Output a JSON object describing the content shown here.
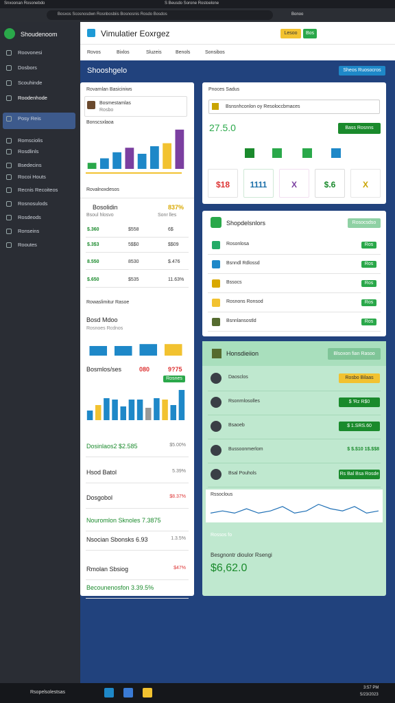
{
  "browser": {
    "tab": "Snxoonan Rosonebdo",
    "window_title": "S Beusdo Sorone Rostoelone",
    "address": "Bosxos Scosnosdwn Rosnbosbiis Bosnosnis Rosdo Bosdos",
    "profile": "Bonoo"
  },
  "sidebar": {
    "brand": "Shoudenoom",
    "items": [
      "Roovonesi",
      "Dosbors",
      "Scouhinde",
      "Roodenhode",
      "Posy Reis",
      "Romsciolis",
      "Rosdlinls",
      "Bsedecins",
      "Rocoi Houts",
      "Recnis Recoiteos",
      "Rosnosulods",
      "Rosdeods",
      "Ronseins",
      "Rooutes"
    ]
  },
  "header": {
    "title": "Vimulatier Eoxrgez",
    "buttons": [
      "Lesoo",
      "Bos"
    ],
    "tabs": [
      "Rovos",
      "Bixlos",
      "Sluzeis",
      "Benols",
      "Sonsibos"
    ]
  },
  "dashboard": {
    "title": "Shooshgelo",
    "action": "Sheos Ruosocros"
  },
  "left_panel": {
    "heading": "Rovarnlan Basiciniws",
    "profile_name": "Bosmestamlas",
    "profile_sub": "Rosbo",
    "chart_title": "Bonscsxlaoa",
    "chart_1": {
      "ylim": [
        0,
        60
      ],
      "bars": [
        {
          "value": 8,
          "color": "#2aa84a"
        },
        {
          "value": 14,
          "color": "#1e88c8"
        },
        {
          "value": 22,
          "color": "#1e88c8"
        },
        {
          "value": 28,
          "color": "#7b3fa0"
        },
        {
          "value": 20,
          "color": "#1e88c8"
        },
        {
          "value": 30,
          "color": "#1e88c8"
        },
        {
          "value": 34,
          "color": "#f2c230"
        },
        {
          "value": 52,
          "color": "#7b3fa0"
        }
      ]
    },
    "section_2": "Rovalnoxdesos",
    "stat_title": "Bosolidin",
    "stat_value": "837%",
    "stat_sub": "Bsoul hlosvo",
    "stat_sub_right": "Sonr lles",
    "rows": [
      [
        "$.360",
        "$558",
        "6$"
      ],
      [
        "$.3$3",
        "5$$0",
        "$$09"
      ],
      [
        "8.550",
        "8530",
        "$.476"
      ],
      [
        "$.650",
        "$535",
        "11.63%"
      ]
    ],
    "section_3": "Rowaslimitur Rasoe",
    "block_title": "Bosd Mdoo",
    "block_sub": "Rosnoes Rcdnos",
    "chart_2": {
      "ylim": [
        0,
        20
      ],
      "bars": [
        {
          "value": 10,
          "color": "#1e88c8"
        },
        {
          "value": 10,
          "color": "#1e88c8"
        },
        {
          "value": 12,
          "color": "#1e88c8"
        },
        {
          "value": 12,
          "color": "#f2c230"
        }
      ]
    },
    "metric_label": "Bosmlos/ses",
    "metric_a": "080",
    "metric_b": "9?75",
    "metric_badge": "Rosnes",
    "chart_3": {
      "ylim": [
        0,
        50
      ],
      "bars": [
        {
          "value": 14,
          "color": "#1e88c8"
        },
        {
          "value": 22,
          "color": "#f2c230"
        },
        {
          "value": 32,
          "color": "#1e88c8"
        },
        {
          "value": 30,
          "color": "#1e88c8"
        },
        {
          "value": 20,
          "color": "#1e88c8"
        },
        {
          "value": 30,
          "color": "#1e88c8"
        },
        {
          "value": 30,
          "color": "#1e88c8"
        },
        {
          "value": 18,
          "color": "#999999"
        },
        {
          "value": 32,
          "color": "#1e88c8"
        },
        {
          "value": 30,
          "color": "#f2c230"
        },
        {
          "value": 22,
          "color": "#1e88c8"
        },
        {
          "value": 44,
          "color": "#1e88c8"
        }
      ]
    },
    "list": [
      [
        "Dosinlaos2 $2.585",
        "$5.00%"
      ],
      [
        "Hsod Batol",
        "5.39%"
      ],
      [
        "Dosgobol",
        "$8.37%"
      ],
      [
        "Nouromlon Sknoles 7.3875",
        ""
      ],
      [
        "Nsocian Sbonsks 6.93",
        "1.3.5%"
      ],
      [
        "Rmolan Sbsiog",
        "$47%"
      ],
      [
        "Becounenosfon 3.39.5%",
        ""
      ]
    ]
  },
  "right_top": {
    "heading": "Pnoces Sadus",
    "input": "Bsnsnhconlon oy Resoloccbmaces",
    "value": "27.5.0",
    "button": "Bass Rosnns",
    "tiles": [
      "$18",
      "1111",
      "X",
      "$.6",
      "X"
    ]
  },
  "right_list": {
    "title": "Shopdelsnlors",
    "button": "Rosocsdso",
    "rows": [
      [
        "Rosonlosa",
        "Ros"
      ],
      [
        "Bsnndl Rdlossd",
        "Ros"
      ],
      [
        "Bssocs",
        "Ros"
      ],
      [
        "Rosnons Ronsod",
        "Ros"
      ],
      [
        "Bsnnlansostld",
        "Ros"
      ]
    ]
  },
  "right_green": {
    "title": "Honsdieiion",
    "button": "Blsoxon fian Rasoo",
    "rows": [
      [
        "Daosclos",
        "Rosbo Bilaas"
      ],
      [
        "Rsonrnlosolles",
        "$ 'Rz R$0"
      ],
      [
        "Bsaoeb",
        "$ 1.SRS.60"
      ],
      [
        "Bussoonmerlom",
        "$ $.$10  1$.$$8"
      ],
      [
        "Bsal Pouhols",
        "Rs Bal Bsa Rosde"
      ]
    ],
    "chart_label": "Rssoclous",
    "chart": {
      "ylim": [
        0,
        10
      ],
      "series": [
        {
          "color": "#1e6fb5",
          "values": [
            3,
            4,
            3,
            5,
            3,
            4,
            6,
            3,
            4,
            7,
            5,
            4,
            6,
            3,
            4
          ]
        }
      ]
    },
    "footer_label": "Rossos fo",
    "footer_sub": "Besgnontr dioulor Rsengi",
    "footer_value": "$6,62.0"
  },
  "taskbar": {
    "search": "Rsopelsolestsas",
    "time": "3:57 PM",
    "date": "5/23/2023"
  }
}
